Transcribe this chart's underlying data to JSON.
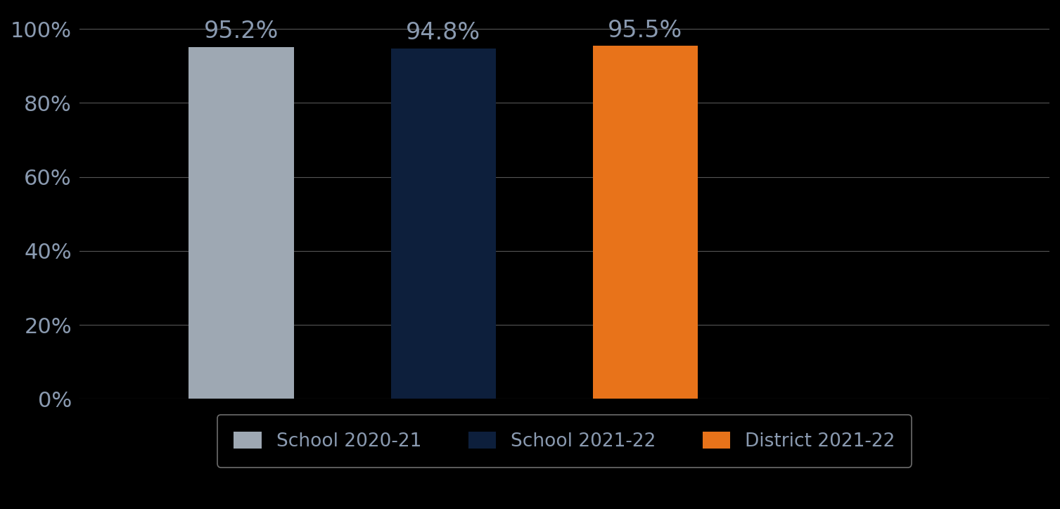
{
  "categories": [
    "School 2020-21",
    "School 2021-22",
    "District 2021-22"
  ],
  "values": [
    95.2,
    94.8,
    95.5
  ],
  "bar_colors": [
    "#9ea8b3",
    "#0d1f3c",
    "#e8731a"
  ],
  "background_color": "#000000",
  "text_color": "#8a9ab0",
  "ylim": [
    0,
    105
  ],
  "yticks": [
    0,
    20,
    40,
    60,
    80,
    100
  ],
  "ytick_labels": [
    "0%",
    "20%",
    "40%",
    "60%",
    "80%",
    "100%"
  ],
  "bar_label_fontsize": 24,
  "tick_fontsize": 22,
  "legend_fontsize": 19,
  "grid_color": "#555555",
  "bar_width": 0.52,
  "x_positions": [
    1,
    2,
    3
  ],
  "xlim": [
    0.2,
    5.0
  ]
}
